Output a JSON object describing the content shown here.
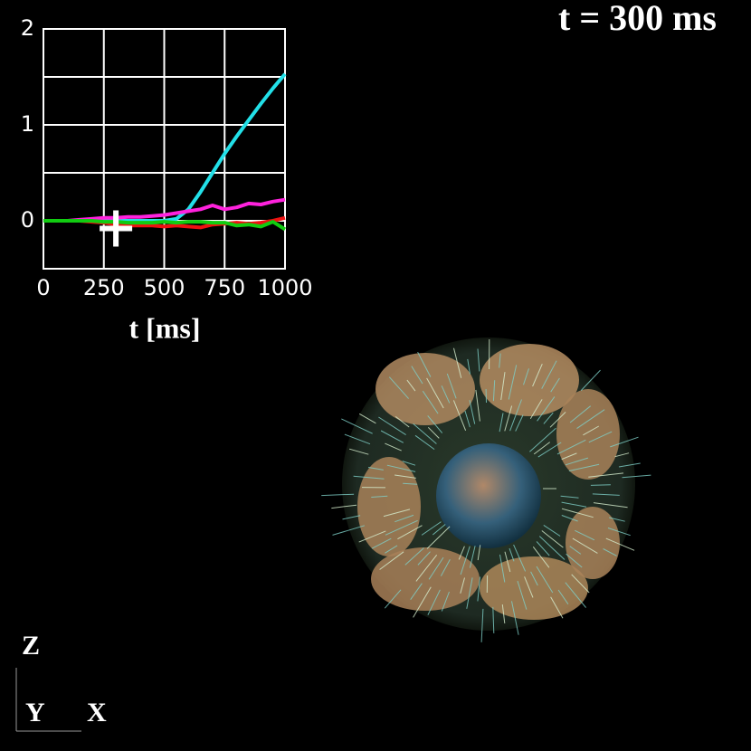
{
  "chart_data": {
    "type": "line",
    "title": "t =  300 ms",
    "x_label": "t [ms]",
    "x": [
      0,
      50,
      100,
      150,
      200,
      250,
      300,
      350,
      400,
      450,
      500,
      550,
      600,
      650,
      700,
      750,
      800,
      850,
      900,
      950,
      1000
    ],
    "series": [
      {
        "color": "#22e0e8",
        "values": [
          0,
          0,
          0,
          0,
          0,
          0,
          0,
          0,
          0,
          0,
          0,
          0.02,
          0.12,
          0.3,
          0.5,
          0.7,
          0.88,
          1.05,
          1.22,
          1.38,
          1.53
        ]
      },
      {
        "color": "#ff22dd",
        "values": [
          0,
          0,
          0,
          0.01,
          0.02,
          0.03,
          0.03,
          0.04,
          0.04,
          0.05,
          0.06,
          0.08,
          0.1,
          0.12,
          0.16,
          0.12,
          0.14,
          0.18,
          0.17,
          0.2,
          0.22
        ]
      },
      {
        "color": "#ee1111",
        "values": [
          0,
          0,
          0,
          0,
          -0.01,
          -0.02,
          -0.04,
          -0.05,
          -0.05,
          -0.05,
          -0.06,
          -0.05,
          -0.06,
          -0.07,
          -0.04,
          -0.03,
          -0.02,
          -0.03,
          -0.02,
          0,
          0.03
        ]
      },
      {
        "color": "#11cc11",
        "values": [
          0,
          0,
          0,
          0,
          0,
          -0.01,
          -0.01,
          -0.02,
          -0.02,
          -0.02,
          -0.01,
          -0.02,
          -0.01,
          -0.01,
          -0.02,
          -0.02,
          -0.05,
          -0.04,
          -0.06,
          -0.01,
          -0.09
        ]
      }
    ],
    "xlim": [
      0,
      1000
    ],
    "xticks": [
      0,
      250,
      500,
      750,
      1000
    ],
    "ylim": [
      -0.5,
      2
    ],
    "yticks": [
      0,
      1,
      2
    ],
    "ygrid": [
      0,
      0.5,
      1,
      1.5,
      2
    ],
    "grid": true,
    "cursor": {
      "x": 300,
      "y": -0.08
    }
  },
  "axes_triad": {
    "z": "Z",
    "y": "Y",
    "x": "X"
  }
}
